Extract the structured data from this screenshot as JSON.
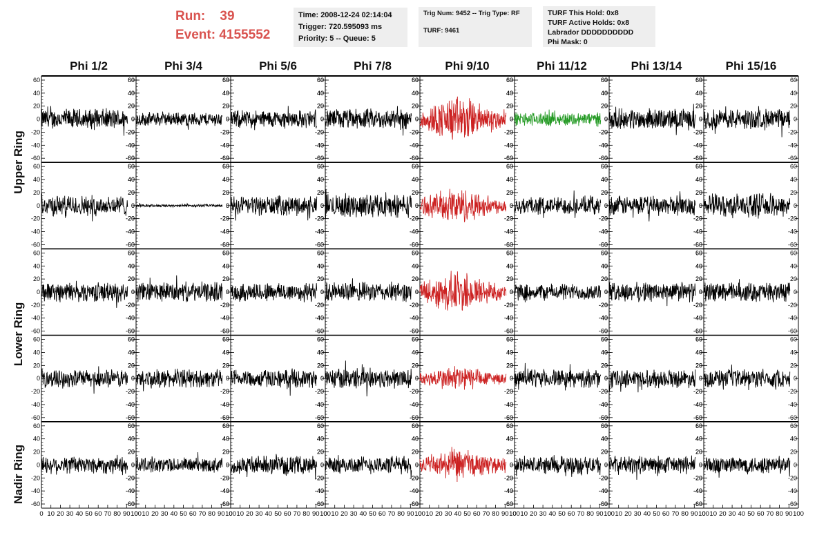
{
  "header": {
    "run_label": "Run:",
    "run_value": "39",
    "event_label": "Event:",
    "event_value": "4155552"
  },
  "info": {
    "time": "Time: 2008-12-24 02:14:04",
    "trigger": "Trigger: 720.595093 ms",
    "priority": "Priority: 5 -- Queue: 5",
    "trig_num": "Trig Num: 9452 -- Trig Type: RF",
    "turf": "TURF: 9461",
    "turf_this_hold": "TURF This Hold: 0x8",
    "turf_active_holds": "TURF Active Holds: 0x8",
    "labrador": "Labrador DDDDDDDDDD",
    "phi_mask": "Phi Mask: 0"
  },
  "colors": {
    "normal_trace": "#000000",
    "triggered_trace": "#cc2222",
    "highlight_trace": "#229922",
    "header_red": "#d9534f",
    "info_bg": "#eeeeee"
  },
  "columns": [
    "Phi 1/2",
    "Phi 3/4",
    "Phi 5/6",
    "Phi 7/8",
    "Phi 9/10",
    "Phi 11/12",
    "Phi 13/14",
    "Phi 15/16"
  ],
  "ring_labels": {
    "upper": "Upper Ring",
    "lower": "Lower Ring",
    "nadir": "Nadir Ring"
  },
  "chart_data": {
    "type": "line",
    "xlim": [
      0,
      100
    ],
    "ylim": [
      -60,
      60
    ],
    "x_ticks": [
      "0",
      "10",
      "20",
      "30",
      "40",
      "50",
      "60",
      "70",
      "80",
      "90",
      "100"
    ],
    "y_ticks": [
      "60",
      "40",
      "20",
      "0",
      "-20",
      "-40",
      "-60"
    ],
    "rows": 5,
    "cols": 8,
    "samples_per_trace": 260,
    "trace_colors": [
      [
        "normal",
        "normal",
        "normal",
        "normal",
        "triggered",
        "highlight",
        "normal",
        "normal"
      ],
      [
        "normal",
        "normal",
        "normal",
        "normal",
        "triggered",
        "normal",
        "normal",
        "normal"
      ],
      [
        "normal",
        "normal",
        "normal",
        "normal",
        "triggered",
        "normal",
        "normal",
        "normal"
      ],
      [
        "normal",
        "normal",
        "normal",
        "normal",
        "triggered",
        "normal",
        "normal",
        "normal"
      ],
      [
        "normal",
        "normal",
        "normal",
        "normal",
        "triggered",
        "normal",
        "normal",
        "normal"
      ]
    ],
    "trace_amplitude": [
      [
        15,
        10,
        13,
        15,
        28,
        10,
        15,
        15
      ],
      [
        15,
        2,
        14,
        17,
        22,
        13,
        14,
        17
      ],
      [
        14,
        14,
        14,
        14,
        26,
        12,
        14,
        14
      ],
      [
        13,
        13,
        13,
        15,
        16,
        13,
        13,
        13
      ],
      [
        13,
        11,
        13,
        13,
        20,
        13,
        13,
        13
      ]
    ]
  }
}
